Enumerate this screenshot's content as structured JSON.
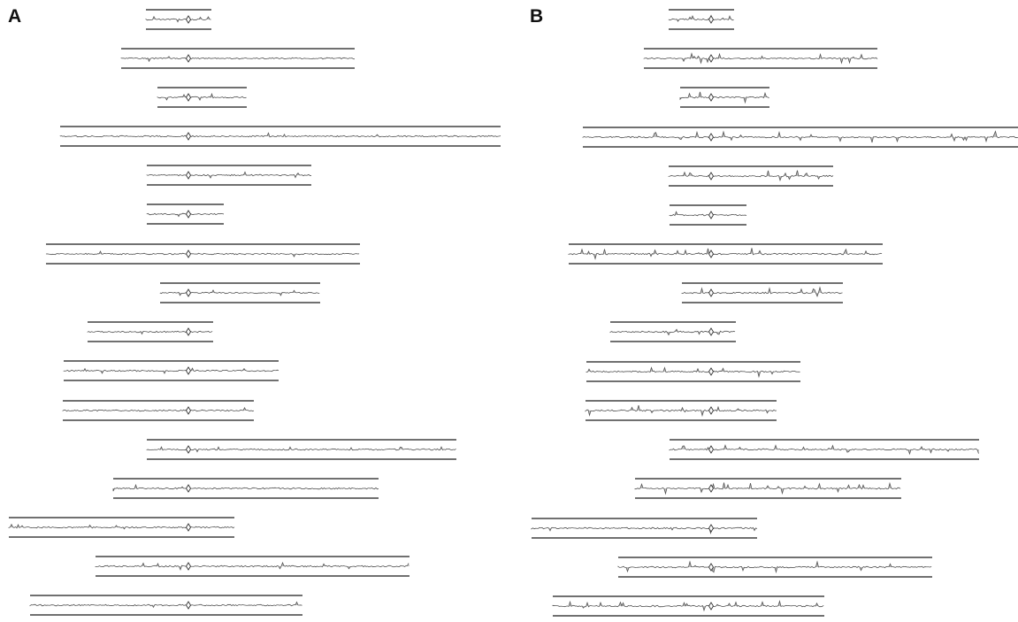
{
  "panels": {
    "a": {
      "label": "A",
      "tracks": 16,
      "activity": 0.25
    },
    "b": {
      "label": "B",
      "tracks": 16,
      "activity": 0.7
    }
  },
  "colors": {
    "frame": "#1a1a1a",
    "signal": "#555555",
    "signal_fill": "#8a8a8a",
    "marker": "#333333",
    "background": "#ffffff"
  },
  "marker_shape": "diamond"
}
